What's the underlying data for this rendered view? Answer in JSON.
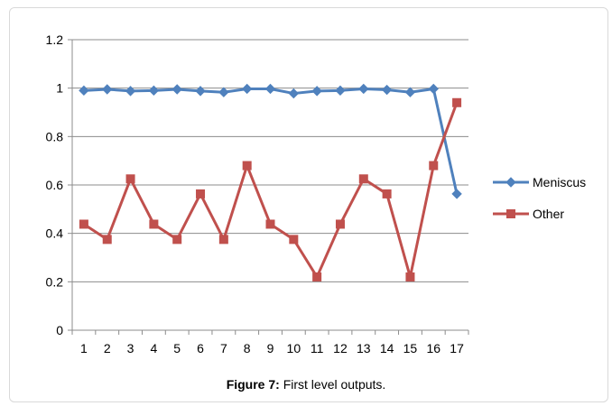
{
  "caption": {
    "label": "Figure 7:",
    "text": " First level outputs."
  },
  "chart_data": {
    "type": "line",
    "title": "",
    "xlabel": "",
    "ylabel": "",
    "x": [
      1,
      2,
      3,
      4,
      5,
      6,
      7,
      8,
      9,
      10,
      11,
      12,
      13,
      14,
      15,
      16,
      17
    ],
    "ylim": [
      0,
      1.2
    ],
    "yticks": [
      0,
      0.2,
      0.4,
      0.6,
      0.8,
      1,
      1.2
    ],
    "yticklabels": [
      "0",
      "0.2",
      "0.4",
      "0.6",
      "0.8",
      "1",
      "1.2"
    ],
    "grid": "horizontal",
    "legend_position": "right",
    "series": [
      {
        "name": "Meniscus",
        "color": "#4f81bd",
        "marker": "diamond",
        "values": [
          0.99,
          0.995,
          0.988,
          0.99,
          0.995,
          0.988,
          0.983,
          0.997,
          0.997,
          0.978,
          0.988,
          0.99,
          0.997,
          0.993,
          0.983,
          0.997,
          0.563
        ]
      },
      {
        "name": "Other",
        "color": "#c0504d",
        "marker": "square",
        "values": [
          0.438,
          0.375,
          0.625,
          0.438,
          0.375,
          0.563,
          0.375,
          0.68,
          0.438,
          0.375,
          0.22,
          0.438,
          0.625,
          0.563,
          0.22,
          0.68,
          0.94
        ]
      }
    ]
  }
}
